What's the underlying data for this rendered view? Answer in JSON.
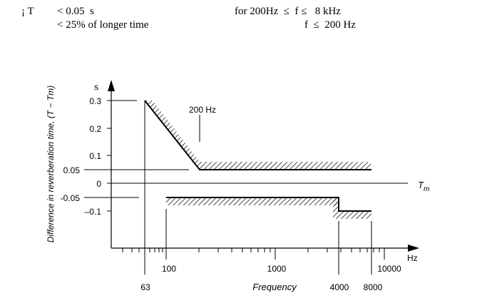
{
  "header": {
    "symbol": "¡ T",
    "line1_value": "< 0.05  s",
    "line2_value": "< 25% of longer time",
    "line1_condition": "for 200Hz  ≤  f ≤   8 kHz",
    "line2_condition": "f  ≤  200 Hz"
  },
  "diagram": {
    "y_unit": "s",
    "y_axis_label": "Difference in reverberation time, (T − Tm)",
    "y_ticks": [
      "0.3",
      "0.2",
      "0.1",
      "0.05",
      "0",
      "-0.05",
      "–0.1"
    ],
    "x_unit": "Hz",
    "x_axis_label": "Frequency",
    "x_ticks_major": [
      "100",
      "1000",
      "10000"
    ],
    "x_ticks_marked": [
      "63",
      "4000",
      "8000"
    ],
    "annotation_200hz": "200 Hz",
    "reference_label": "T",
    "reference_subscript": "m",
    "stroke_color": "#000000"
  }
}
